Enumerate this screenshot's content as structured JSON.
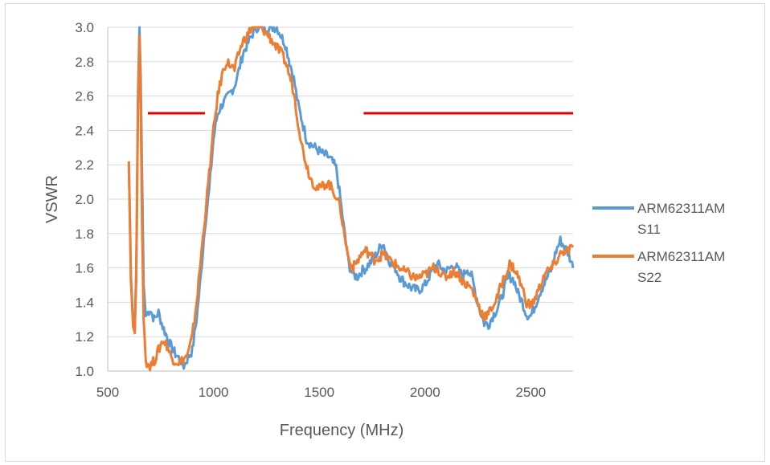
{
  "chart_data": {
    "type": "line",
    "title": "",
    "xlabel": "Frequency (MHz)",
    "ylabel": "VSWR",
    "xlim": [
      500,
      2700
    ],
    "ylim": [
      1.0,
      3.0
    ],
    "x_ticks": [
      "500",
      "1000",
      "1500",
      "2000",
      "2500"
    ],
    "y_ticks": [
      "1.0",
      "1.2",
      "1.4",
      "1.6",
      "1.8",
      "2.0",
      "2.2",
      "2.4",
      "2.6",
      "2.8",
      "3.0"
    ],
    "grid": "horizontal",
    "legend_position": "right",
    "series": [
      {
        "name_line1": "ARM62311AM",
        "name_line2": "S11",
        "color": "#5b9bd5",
        "points": [
          [
            600,
            2.2
          ],
          [
            610,
            1.55
          ],
          [
            620,
            1.28
          ],
          [
            628,
            1.25
          ],
          [
            635,
            1.6
          ],
          [
            643,
            2.6
          ],
          [
            650,
            3.0
          ],
          [
            656,
            2.7
          ],
          [
            663,
            2.1
          ],
          [
            670,
            1.5
          ],
          [
            680,
            1.32
          ],
          [
            700,
            1.36
          ],
          [
            720,
            1.3
          ],
          [
            740,
            1.34
          ],
          [
            760,
            1.26
          ],
          [
            780,
            1.2
          ],
          [
            800,
            1.14
          ],
          [
            820,
            1.1
          ],
          [
            840,
            1.07
          ],
          [
            860,
            1.03
          ],
          [
            880,
            1.08
          ],
          [
            900,
            1.12
          ],
          [
            920,
            1.3
          ],
          [
            940,
            1.55
          ],
          [
            960,
            1.85
          ],
          [
            980,
            2.05
          ],
          [
            1000,
            2.35
          ],
          [
            1020,
            2.5
          ],
          [
            1040,
            2.55
          ],
          [
            1060,
            2.58
          ],
          [
            1080,
            2.62
          ],
          [
            1100,
            2.66
          ],
          [
            1120,
            2.75
          ],
          [
            1140,
            2.85
          ],
          [
            1160,
            2.9
          ],
          [
            1180,
            2.95
          ],
          [
            1200,
            3.0
          ],
          [
            1220,
            3.0
          ],
          [
            1240,
            3.0
          ],
          [
            1260,
            3.0
          ],
          [
            1280,
            3.0
          ],
          [
            1300,
            3.0
          ],
          [
            1320,
            2.95
          ],
          [
            1340,
            2.9
          ],
          [
            1360,
            2.8
          ],
          [
            1380,
            2.7
          ],
          [
            1400,
            2.55
          ],
          [
            1420,
            2.45
          ],
          [
            1440,
            2.35
          ],
          [
            1460,
            2.32
          ],
          [
            1480,
            2.3
          ],
          [
            1500,
            2.28
          ],
          [
            1520,
            2.26
          ],
          [
            1540,
            2.25
          ],
          [
            1560,
            2.22
          ],
          [
            1580,
            2.18
          ],
          [
            1600,
            2.0
          ],
          [
            1620,
            1.8
          ],
          [
            1640,
            1.62
          ],
          [
            1660,
            1.56
          ],
          [
            1680,
            1.55
          ],
          [
            1700,
            1.58
          ],
          [
            1720,
            1.6
          ],
          [
            1740,
            1.63
          ],
          [
            1760,
            1.66
          ],
          [
            1780,
            1.7
          ],
          [
            1800,
            1.75
          ],
          [
            1820,
            1.68
          ],
          [
            1840,
            1.62
          ],
          [
            1860,
            1.6
          ],
          [
            1880,
            1.55
          ],
          [
            1900,
            1.52
          ],
          [
            1920,
            1.5
          ],
          [
            1940,
            1.48
          ],
          [
            1960,
            1.47
          ],
          [
            1980,
            1.48
          ],
          [
            2000,
            1.5
          ],
          [
            2020,
            1.55
          ],
          [
            2040,
            1.6
          ],
          [
            2060,
            1.62
          ],
          [
            2080,
            1.6
          ],
          [
            2100,
            1.58
          ],
          [
            2120,
            1.6
          ],
          [
            2140,
            1.62
          ],
          [
            2160,
            1.58
          ],
          [
            2180,
            1.55
          ],
          [
            2200,
            1.6
          ],
          [
            2220,
            1.55
          ],
          [
            2240,
            1.45
          ],
          [
            2260,
            1.35
          ],
          [
            2280,
            1.28
          ],
          [
            2300,
            1.27
          ],
          [
            2320,
            1.32
          ],
          [
            2340,
            1.36
          ],
          [
            2360,
            1.42
          ],
          [
            2380,
            1.5
          ],
          [
            2400,
            1.55
          ],
          [
            2420,
            1.53
          ],
          [
            2440,
            1.45
          ],
          [
            2460,
            1.4
          ],
          [
            2480,
            1.33
          ],
          [
            2500,
            1.32
          ],
          [
            2520,
            1.38
          ],
          [
            2540,
            1.45
          ],
          [
            2560,
            1.5
          ],
          [
            2580,
            1.55
          ],
          [
            2600,
            1.6
          ],
          [
            2620,
            1.7
          ],
          [
            2640,
            1.76
          ],
          [
            2660,
            1.72
          ],
          [
            2680,
            1.68
          ],
          [
            2700,
            1.6
          ]
        ]
      },
      {
        "name_line1": "ARM62311AM",
        "name_line2": "S22",
        "color": "#ed7d31",
        "points": [
          [
            600,
            2.22
          ],
          [
            610,
            1.52
          ],
          [
            620,
            1.26
          ],
          [
            628,
            1.22
          ],
          [
            635,
            1.55
          ],
          [
            643,
            2.5
          ],
          [
            650,
            2.95
          ],
          [
            656,
            2.55
          ],
          [
            663,
            1.8
          ],
          [
            670,
            1.3
          ],
          [
            680,
            1.06
          ],
          [
            700,
            1.03
          ],
          [
            720,
            1.06
          ],
          [
            740,
            1.12
          ],
          [
            760,
            1.18
          ],
          [
            780,
            1.15
          ],
          [
            800,
            1.08
          ],
          [
            820,
            1.06
          ],
          [
            840,
            1.05
          ],
          [
            860,
            1.07
          ],
          [
            880,
            1.1
          ],
          [
            900,
            1.2
          ],
          [
            920,
            1.4
          ],
          [
            940,
            1.65
          ],
          [
            960,
            1.9
          ],
          [
            980,
            2.15
          ],
          [
            1000,
            2.4
          ],
          [
            1020,
            2.6
          ],
          [
            1040,
            2.72
          ],
          [
            1060,
            2.8
          ],
          [
            1080,
            2.78
          ],
          [
            1100,
            2.75
          ],
          [
            1120,
            2.85
          ],
          [
            1140,
            2.92
          ],
          [
            1160,
            2.95
          ],
          [
            1180,
            3.0
          ],
          [
            1200,
            3.0
          ],
          [
            1220,
            3.0
          ],
          [
            1240,
            2.98
          ],
          [
            1260,
            2.95
          ],
          [
            1280,
            2.92
          ],
          [
            1300,
            2.88
          ],
          [
            1320,
            2.85
          ],
          [
            1340,
            2.8
          ],
          [
            1360,
            2.72
          ],
          [
            1380,
            2.62
          ],
          [
            1400,
            2.45
          ],
          [
            1420,
            2.3
          ],
          [
            1440,
            2.2
          ],
          [
            1460,
            2.12
          ],
          [
            1480,
            2.08
          ],
          [
            1500,
            2.06
          ],
          [
            1520,
            2.08
          ],
          [
            1540,
            2.1
          ],
          [
            1560,
            2.06
          ],
          [
            1580,
            2.02
          ],
          [
            1600,
            1.95
          ],
          [
            1620,
            1.78
          ],
          [
            1640,
            1.65
          ],
          [
            1660,
            1.6
          ],
          [
            1680,
            1.64
          ],
          [
            1700,
            1.68
          ],
          [
            1720,
            1.7
          ],
          [
            1740,
            1.68
          ],
          [
            1760,
            1.65
          ],
          [
            1780,
            1.66
          ],
          [
            1800,
            1.68
          ],
          [
            1820,
            1.66
          ],
          [
            1840,
            1.64
          ],
          [
            1860,
            1.62
          ],
          [
            1880,
            1.6
          ],
          [
            1900,
            1.58
          ],
          [
            1920,
            1.57
          ],
          [
            1940,
            1.55
          ],
          [
            1960,
            1.54
          ],
          [
            1980,
            1.55
          ],
          [
            2000,
            1.56
          ],
          [
            2020,
            1.58
          ],
          [
            2040,
            1.6
          ],
          [
            2060,
            1.6
          ],
          [
            2080,
            1.55
          ],
          [
            2100,
            1.55
          ],
          [
            2120,
            1.57
          ],
          [
            2140,
            1.58
          ],
          [
            2160,
            1.56
          ],
          [
            2180,
            1.52
          ],
          [
            2200,
            1.5
          ],
          [
            2220,
            1.48
          ],
          [
            2240,
            1.42
          ],
          [
            2260,
            1.36
          ],
          [
            2280,
            1.32
          ],
          [
            2300,
            1.33
          ],
          [
            2320,
            1.38
          ],
          [
            2340,
            1.42
          ],
          [
            2360,
            1.5
          ],
          [
            2380,
            1.56
          ],
          [
            2400,
            1.62
          ],
          [
            2420,
            1.6
          ],
          [
            2440,
            1.55
          ],
          [
            2460,
            1.48
          ],
          [
            2480,
            1.4
          ],
          [
            2500,
            1.38
          ],
          [
            2520,
            1.42
          ],
          [
            2540,
            1.48
          ],
          [
            2560,
            1.55
          ],
          [
            2580,
            1.58
          ],
          [
            2600,
            1.6
          ],
          [
            2620,
            1.64
          ],
          [
            2640,
            1.68
          ],
          [
            2660,
            1.7
          ],
          [
            2680,
            1.7
          ],
          [
            2700,
            1.72
          ]
        ]
      }
    ],
    "reference_lines": [
      {
        "x": [
          690,
          960
        ],
        "y": 2.5,
        "color": "#e00000"
      },
      {
        "x": [
          1710,
          2700
        ],
        "y": 2.5,
        "color": "#e00000"
      }
    ]
  }
}
